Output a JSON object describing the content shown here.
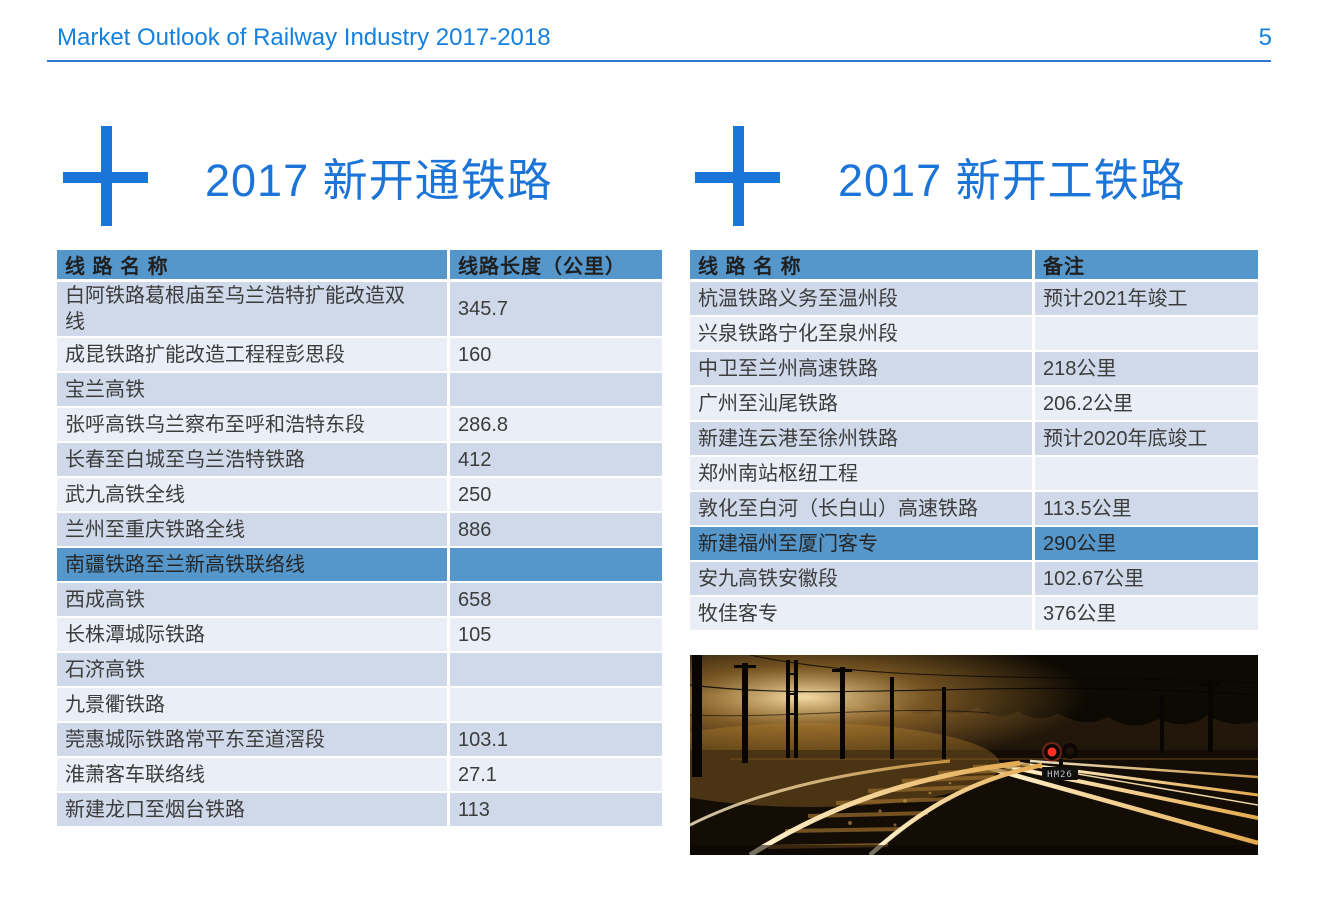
{
  "header": {
    "title": "Market Outlook of Railway Industry 2017-2018",
    "page_number": "5"
  },
  "colors": {
    "accent_blue": "#1b74d8",
    "header_text_blue": "#1581dd",
    "table_header_bg": "#5596cb",
    "row_medium": "#cfd9ea",
    "row_light": "#e9eef7",
    "highlight_row_bg": "#5596cb"
  },
  "left_section": {
    "title": "2017 新开通铁路",
    "table": {
      "columns": [
        "线 路 名 称",
        "线路长度（公里）"
      ],
      "rows": [
        {
          "name": "白阿铁路葛根庙至乌兰浩特扩能改造双线",
          "value": "345.7",
          "highlight": false
        },
        {
          "name": "成昆铁路扩能改造工程程彭思段",
          "value": "160",
          "highlight": false
        },
        {
          "name": "宝兰高铁",
          "value": "",
          "highlight": false
        },
        {
          "name": "张呼高铁乌兰察布至呼和浩特东段",
          "value": "286.8",
          "highlight": false
        },
        {
          "name": "长春至白城至乌兰浩特铁路",
          "value": "412",
          "highlight": false
        },
        {
          "name": "武九高铁全线",
          "value": "250",
          "highlight": false
        },
        {
          "name": "兰州至重庆铁路全线",
          "value": "886",
          "highlight": false
        },
        {
          "name": "南疆铁路至兰新高铁联络线",
          "value": "",
          "highlight": true
        },
        {
          "name": "西成高铁",
          "value": "658",
          "highlight": false
        },
        {
          "name": "长株潭城际铁路",
          "value": "105",
          "highlight": false
        },
        {
          "name": "石济高铁",
          "value": "",
          "highlight": false
        },
        {
          "name": "九景衢铁路",
          "value": "",
          "highlight": false
        },
        {
          "name": "莞惠城际铁路常平东至道滘段",
          "value": "103.1",
          "highlight": false
        },
        {
          "name": "淮萧客车联络线",
          "value": "27.1",
          "highlight": false
        },
        {
          "name": "新建龙口至烟台铁路",
          "value": "113",
          "highlight": false
        }
      ]
    }
  },
  "right_section": {
    "title": "2017 新开工铁路",
    "table": {
      "columns": [
        "线 路 名 称",
        "备注"
      ],
      "rows": [
        {
          "name": "杭温铁路义务至温州段",
          "value": "预计2021年竣工",
          "highlight": false
        },
        {
          "name": "兴泉铁路宁化至泉州段",
          "value": "",
          "highlight": false
        },
        {
          "name": "中卫至兰州高速铁路",
          "value": "218公里",
          "highlight": false
        },
        {
          "name": "广州至汕尾铁路",
          "value": "206.2公里",
          "highlight": false
        },
        {
          "name": "新建连云港至徐州铁路",
          "value": "预计2020年底竣工",
          "highlight": false
        },
        {
          "name": "郑州南站枢纽工程",
          "value": "",
          "highlight": false
        },
        {
          "name": "敦化至白河（长白山）高速铁路",
          "value": "113.5公里",
          "highlight": false
        },
        {
          "name": "新建福州至厦门客专",
          "value": "290公里",
          "highlight": true
        },
        {
          "name": "安九高铁安徽段",
          "value": "102.67公里",
          "highlight": false
        },
        {
          "name": "牧佳客专",
          "value": "376公里",
          "highlight": false
        }
      ]
    },
    "photo": {
      "alt": "Railway tracks at golden sunset with catenary masts and a red signal light",
      "signal_label": "HM26"
    }
  }
}
